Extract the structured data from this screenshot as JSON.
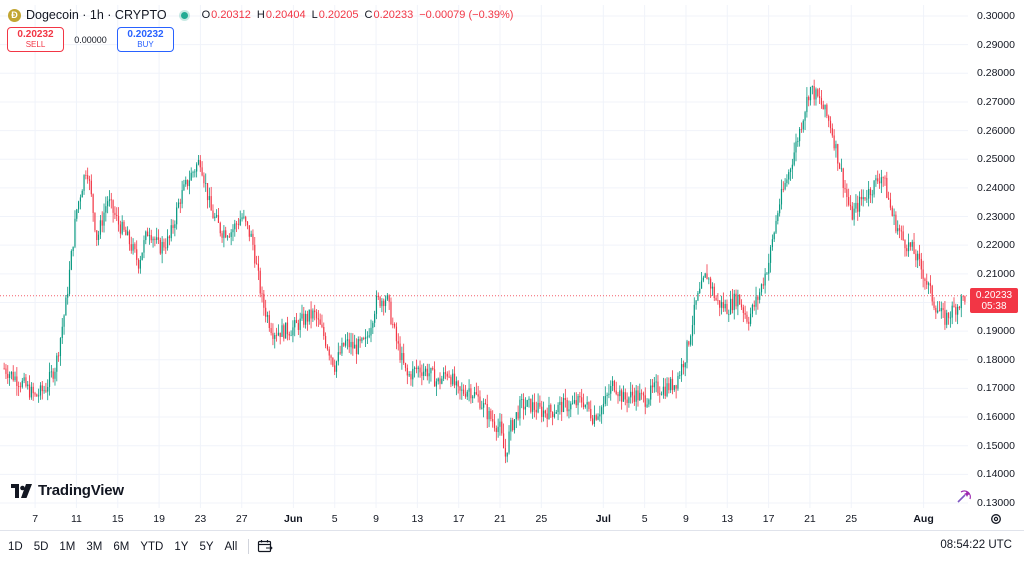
{
  "header": {
    "symbol": "Dogecoin · 1h · CRYPTO",
    "coin_glyph": "Ð",
    "ohlc": {
      "open_label": "O",
      "open": "0.20312",
      "high_label": "H",
      "high": "0.20404",
      "low_label": "L",
      "low": "0.20205",
      "close_label": "C",
      "close": "0.20233",
      "change": "−0.00079 (−0.39%)"
    },
    "status_color": "#22ab94"
  },
  "trade": {
    "sell_price": "0.20232",
    "sell_label": "SELL",
    "spread": "0.00000",
    "buy_price": "0.20232",
    "buy_label": "BUY"
  },
  "branding": {
    "logo_text": "TradingView"
  },
  "price_tag": {
    "price": "0.20233",
    "countdown": "05:38"
  },
  "footer": {
    "ranges": [
      "1D",
      "5D",
      "1M",
      "3M",
      "6M",
      "YTD",
      "1Y",
      "5Y",
      "All"
    ],
    "clock": "08:54:22 UTC"
  },
  "colors": {
    "up": "#089981",
    "down": "#f23645",
    "grid": "#f0f3fa",
    "last_price": "#f23645"
  },
  "chart_data": {
    "type": "candlestick",
    "title": "Dogecoin · 1h · CRYPTO",
    "ylim": [
      0.125,
      0.302
    ],
    "y_ticks": [
      "0.30000",
      "0.29000",
      "0.28000",
      "0.27000",
      "0.26000",
      "0.25000",
      "0.24000",
      "0.23000",
      "0.22000",
      "0.21000",
      "0.20000",
      "0.19000",
      "0.18000",
      "0.17000",
      "0.16000",
      "0.15000",
      "0.14000",
      "0.13000"
    ],
    "x_ticks": [
      {
        "label": "7",
        "day": 6
      },
      {
        "label": "11",
        "day": 10
      },
      {
        "label": "15",
        "day": 14
      },
      {
        "label": "19",
        "day": 18
      },
      {
        "label": "23",
        "day": 22
      },
      {
        "label": "27",
        "day": 26
      },
      {
        "label": "Jun",
        "day": 31,
        "bold": true
      },
      {
        "label": "5",
        "day": 35
      },
      {
        "label": "9",
        "day": 39
      },
      {
        "label": "13",
        "day": 43
      },
      {
        "label": "17",
        "day": 47
      },
      {
        "label": "21",
        "day": 51
      },
      {
        "label": "25",
        "day": 55
      },
      {
        "label": "Jul",
        "day": 61,
        "bold": true
      },
      {
        "label": "5",
        "day": 65
      },
      {
        "label": "9",
        "day": 69
      },
      {
        "label": "13",
        "day": 73
      },
      {
        "label": "17",
        "day": 77
      },
      {
        "label": "21",
        "day": 81
      },
      {
        "label": "25",
        "day": 85
      },
      {
        "label": "Aug",
        "day": 92,
        "bold": true
      }
    ],
    "x_range_days": [
      2.6,
      96.3
    ],
    "last_price": 0.20233,
    "price_path": [
      [
        3,
        0.177
      ],
      [
        5,
        0.171
      ],
      [
        6,
        0.167
      ],
      [
        7,
        0.17
      ],
      [
        8,
        0.178
      ],
      [
        9,
        0.2
      ],
      [
        10,
        0.232
      ],
      [
        11,
        0.248
      ],
      [
        12,
        0.222
      ],
      [
        13,
        0.236
      ],
      [
        14,
        0.228
      ],
      [
        15,
        0.222
      ],
      [
        16,
        0.214
      ],
      [
        17,
        0.226
      ],
      [
        18,
        0.219
      ],
      [
        19,
        0.222
      ],
      [
        20,
        0.236
      ],
      [
        21,
        0.244
      ],
      [
        22,
        0.25
      ],
      [
        23,
        0.232
      ],
      [
        24,
        0.225
      ],
      [
        25,
        0.225
      ],
      [
        26,
        0.23
      ],
      [
        27,
        0.222
      ],
      [
        28,
        0.2
      ],
      [
        29,
        0.19
      ],
      [
        30,
        0.19
      ],
      [
        31,
        0.191
      ],
      [
        32,
        0.194
      ],
      [
        33,
        0.196
      ],
      [
        34,
        0.188
      ],
      [
        35,
        0.178
      ],
      [
        36,
        0.186
      ],
      [
        37,
        0.184
      ],
      [
        38,
        0.186
      ],
      [
        39,
        0.2
      ],
      [
        40,
        0.202
      ],
      [
        41,
        0.186
      ],
      [
        42,
        0.174
      ],
      [
        43,
        0.177
      ],
      [
        44,
        0.176
      ],
      [
        45,
        0.172
      ],
      [
        46,
        0.176
      ],
      [
        47,
        0.168
      ],
      [
        48,
        0.17
      ],
      [
        49,
        0.166
      ],
      [
        50,
        0.16
      ],
      [
        51,
        0.156
      ],
      [
        51.5,
        0.146
      ],
      [
        52,
        0.156
      ],
      [
        53,
        0.164
      ],
      [
        54,
        0.164
      ],
      [
        55,
        0.162
      ],
      [
        56,
        0.162
      ],
      [
        57,
        0.164
      ],
      [
        58,
        0.164
      ],
      [
        59,
        0.166
      ],
      [
        60,
        0.16
      ],
      [
        61,
        0.164
      ],
      [
        62,
        0.172
      ],
      [
        63,
        0.166
      ],
      [
        64,
        0.168
      ],
      [
        65,
        0.166
      ],
      [
        66,
        0.17
      ],
      [
        67,
        0.17
      ],
      [
        68,
        0.172
      ],
      [
        69,
        0.182
      ],
      [
        70,
        0.2
      ],
      [
        71,
        0.21
      ],
      [
        72,
        0.2
      ],
      [
        73,
        0.198
      ],
      [
        74,
        0.202
      ],
      [
        75,
        0.194
      ],
      [
        76,
        0.202
      ],
      [
        77,
        0.214
      ],
      [
        78,
        0.234
      ],
      [
        79,
        0.246
      ],
      [
        80,
        0.26
      ],
      [
        81,
        0.275
      ],
      [
        82,
        0.27
      ],
      [
        83,
        0.262
      ],
      [
        84,
        0.246
      ],
      [
        85,
        0.23
      ],
      [
        86,
        0.236
      ],
      [
        87,
        0.24
      ],
      [
        88,
        0.245
      ],
      [
        89,
        0.23
      ],
      [
        90,
        0.222
      ],
      [
        91,
        0.218
      ],
      [
        92,
        0.21
      ],
      [
        93,
        0.2
      ],
      [
        94,
        0.194
      ],
      [
        95,
        0.198
      ],
      [
        96,
        0.202
      ]
    ],
    "candle_count": 530
  }
}
